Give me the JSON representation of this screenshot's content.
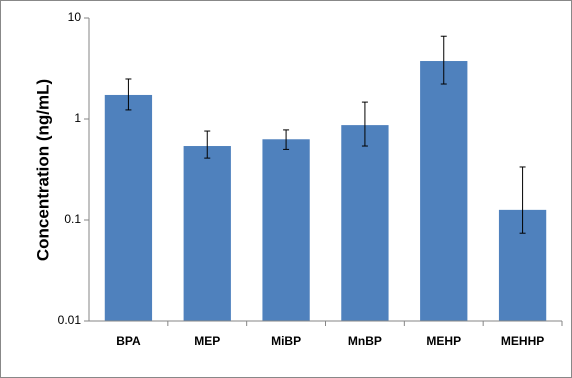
{
  "chart_data": {
    "type": "bar",
    "y_label": "Concentration  (ng/mL)",
    "categories": [
      "BPA",
      "MEP",
      "MiBP",
      "MnBP",
      "MEHP",
      "MEHHP"
    ],
    "values": [
      1.73,
      0.54,
      0.63,
      0.87,
      3.75,
      0.126
    ],
    "lower": [
      1.23,
      0.41,
      0.5,
      0.54,
      2.22,
      0.074
    ],
    "upper": [
      2.49,
      0.76,
      0.78,
      1.47,
      6.6,
      0.335
    ],
    "color": "#4f81bd",
    "log_y": true,
    "ylim": [
      0.01,
      10
    ],
    "yticks": [
      0.01,
      0.1,
      1,
      10
    ]
  }
}
